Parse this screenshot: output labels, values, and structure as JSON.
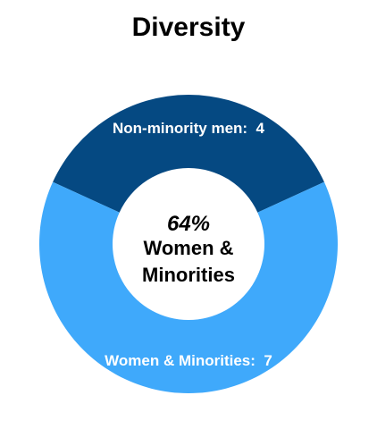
{
  "chart_data": {
    "type": "pie",
    "title": "Diversity",
    "series": [
      {
        "name": "Diversity",
        "slices": [
          {
            "label": "Non-minority men",
            "value": 4,
            "color": "#054982",
            "data_label": "Non-minority men:  4"
          },
          {
            "label": "Women & Minorities",
            "value": 7,
            "color": "#3fa9fb",
            "data_label": "Women & Minorities:  7"
          }
        ]
      }
    ],
    "center_label": {
      "percent": "64%",
      "line1": "Women &",
      "line2": "Minorities"
    },
    "legend": "none",
    "label_color": "#ffffff"
  }
}
